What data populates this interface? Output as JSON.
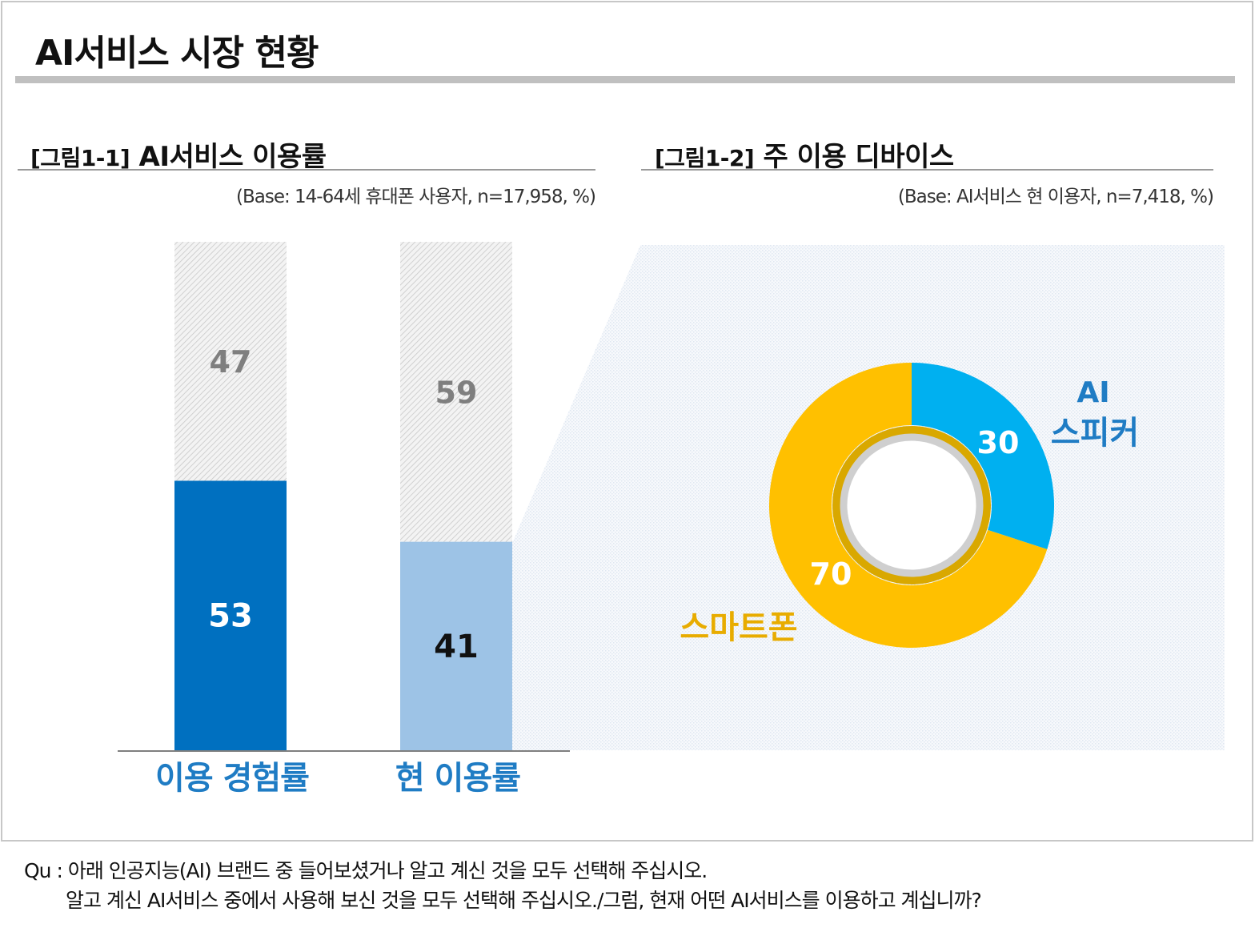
{
  "page": {
    "title": "AI서비스 시장 현황",
    "footnote_line1": "Qu : 아래 인공지능(AI) 브랜드 중 들어보셨거나 알고 계신 것을 모두 선택해 주십시오.",
    "footnote_line2": "알고 계신 AI서비스 중에서 사용해 보신 것을 모두 선택해 주십시오./그럼, 현재 어떤 AI서비스를 이용하고 계십니까?"
  },
  "colors": {
    "dark_blue": "#0070c0",
    "light_blue": "#9dc3e6",
    "cyan": "#00b0f0",
    "gold": "#ffc000",
    "gold_text": "#e8ac00",
    "label_blue": "#1f7cc4",
    "hatch_gray": "#d9d9d9"
  },
  "chart_data": [
    {
      "type": "bar",
      "title_tag": "[그림1-1]",
      "title": "AI서비스 이용률",
      "base_note": "(Base: 14-64세 휴대폰 사용자, n=17,958, %)",
      "categories": [
        "이용 경험률",
        "현 이용률"
      ],
      "stacked": true,
      "series": [
        {
          "values": [
            53,
            41
          ]
        },
        {
          "values": [
            47,
            59
          ]
        }
      ],
      "ylim": [
        0,
        100
      ]
    },
    {
      "type": "pie",
      "donut": true,
      "title_tag": "[그림1-2]",
      "title": "주 이용 디바이스",
      "base_note": "(Base: AI서비스 현 이용자, n=7,418, %)",
      "slices": [
        {
          "label_line1": "AI",
          "label_line2": "스피커",
          "value": 30
        },
        {
          "label": "스마트폰",
          "value": 70
        }
      ]
    }
  ]
}
